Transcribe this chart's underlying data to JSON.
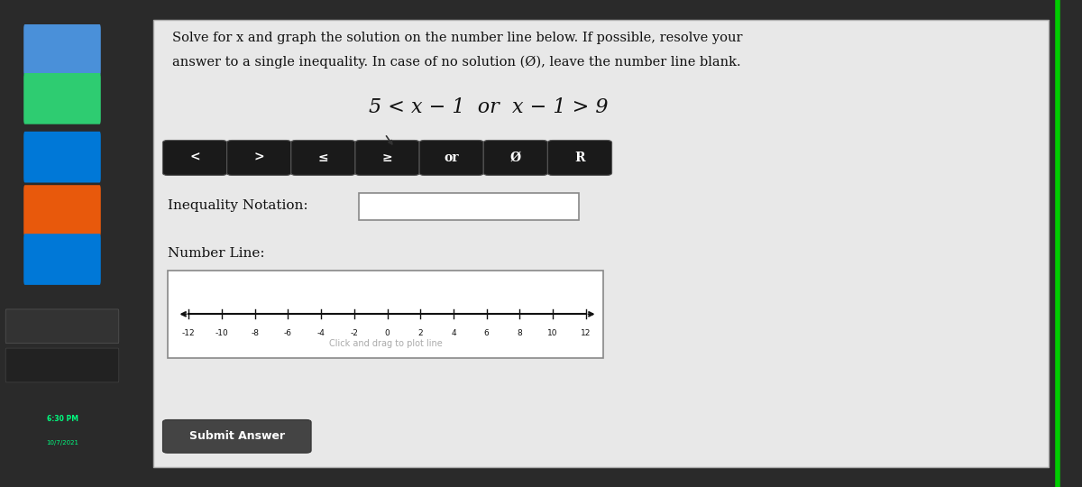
{
  "bg_color": "#2a2a2a",
  "sidebar_color": "#1a1a1a",
  "content_bg": "#d8d8d8",
  "white": "#ffffff",
  "title_text1": "Solve for x and graph the solution on the number line below. If possible, resolve your",
  "title_text2": "answer to a single inequality. In case of no solution (Ø), leave the number line blank.",
  "equation": "5 < x − 1  or  x − 1 > 9",
  "buttons": [
    "<",
    ">",
    "≤",
    "≥",
    "or",
    "Ø",
    "R"
  ],
  "inequality_label": "Inequality Notation:",
  "number_line_label": "Number Line:",
  "number_line_ticks": [
    -12,
    -10,
    -8,
    -6,
    -4,
    -2,
    0,
    2,
    4,
    6,
    8,
    10,
    12
  ],
  "click_drag_text": "Click and drag to plot line",
  "submit_text": "Submit Answer",
  "submit_color": "#444444",
  "time_text": "6:30 PM",
  "date_text": "10/7/2021",
  "panel_border": "#888888",
  "input_box_color": "#ffffff",
  "green_border": "#00cc00"
}
